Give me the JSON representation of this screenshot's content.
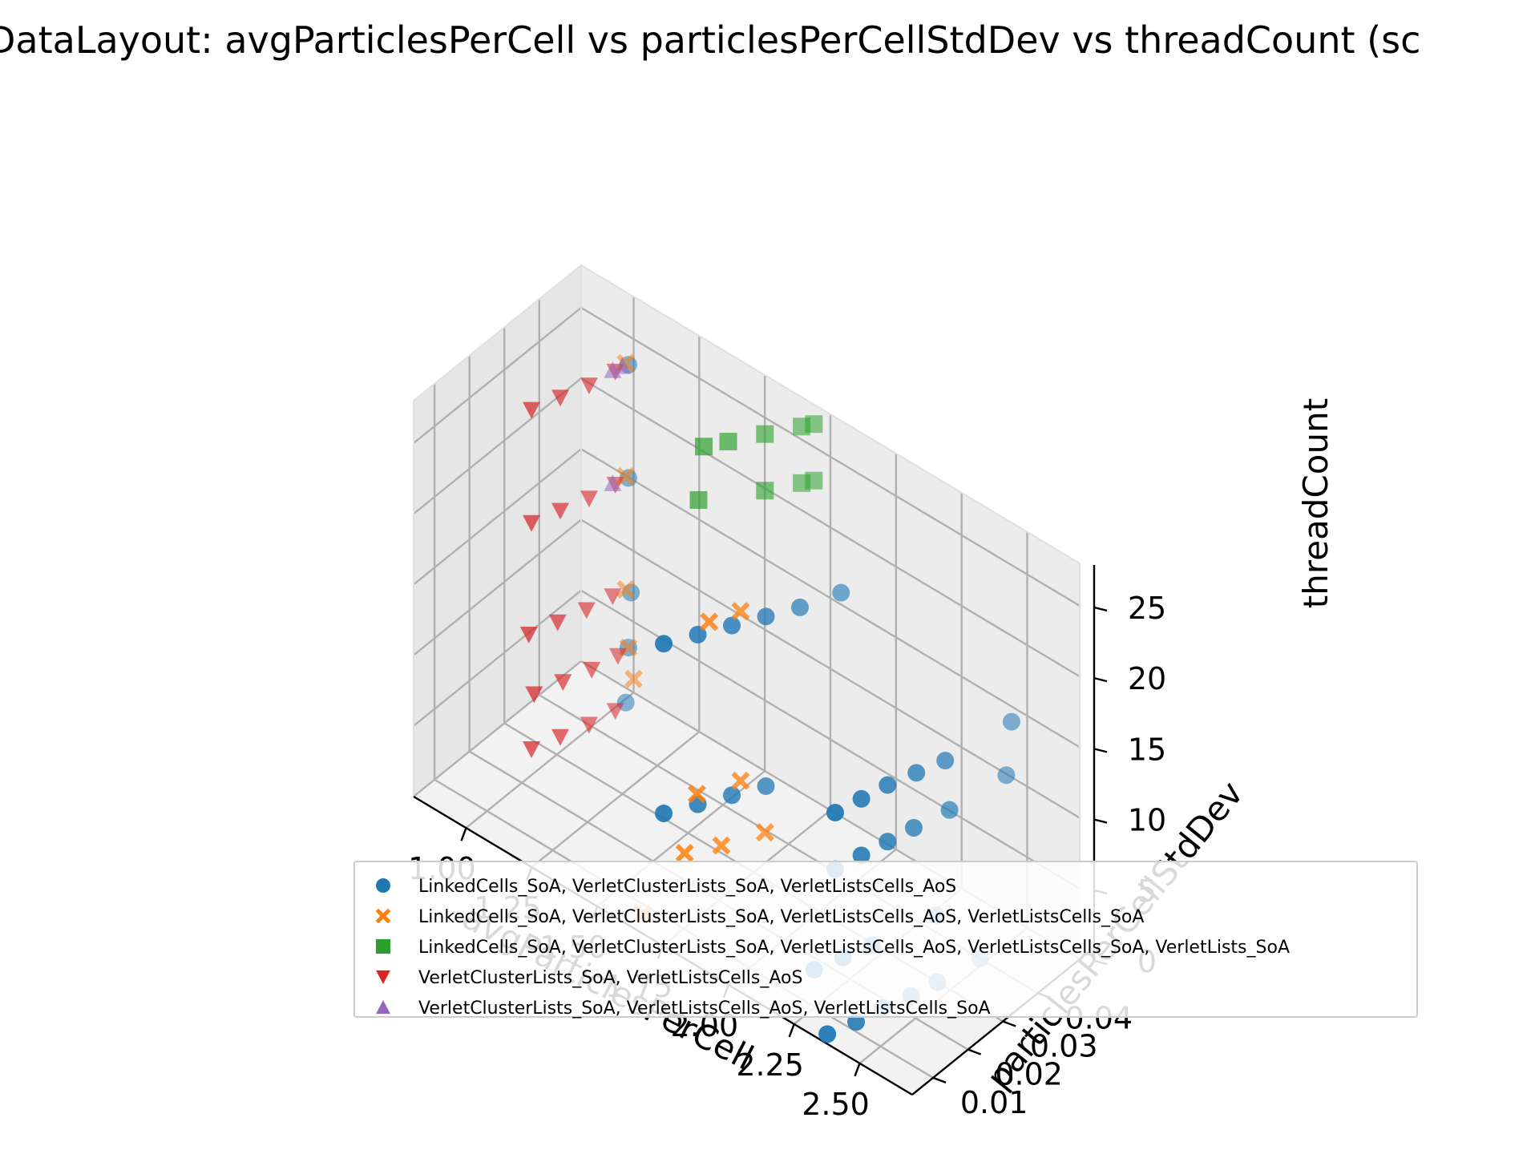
{
  "chart_data": {
    "type": "scatter",
    "title": "DataLayout: avgParticlesPerCell vs particlesPerCellStdDev vs threadCount (sc",
    "xlabel": "avgParticlesPerCell",
    "ylabel": "particlesPerCellStdDev",
    "zlabel": "threadCount",
    "x_ticks": [
      "1.00",
      "1.25",
      "1.50",
      "1.75",
      "2.00",
      "2.25",
      "2.50"
    ],
    "y_ticks": [
      "0.01",
      "0.02",
      "0.03",
      "0.04"
    ],
    "z_ticks": [
      "0",
      "5",
      "10",
      "15",
      "20",
      "25"
    ],
    "xlim": [
      0.8,
      2.7
    ],
    "ylim": [
      0.004,
      0.052
    ],
    "zlim": [
      0,
      28
    ],
    "grid": true,
    "legend_position": "bottom",
    "series": [
      {
        "name": "LinkedCells_SoA, VerletClusterLists_SoA, VerletListsCells_AoS",
        "color": "#1f77b4",
        "marker": "circle",
        "points": [
          [
            2.35,
            0.006,
            0
          ],
          [
            2.38,
            0.012,
            0
          ],
          [
            2.4,
            0.018,
            0
          ],
          [
            2.43,
            0.024,
            0
          ],
          [
            2.45,
            0.03,
            0
          ],
          [
            2.48,
            0.04,
            0
          ],
          [
            2.3,
            0.006,
            4
          ],
          [
            2.33,
            0.012,
            4
          ],
          [
            2.36,
            0.018,
            4
          ],
          [
            2.42,
            0.032,
            4
          ],
          [
            2.38,
            0.006,
            12
          ],
          [
            2.4,
            0.012,
            12
          ],
          [
            2.42,
            0.018,
            12
          ],
          [
            2.44,
            0.024,
            12
          ],
          [
            2.47,
            0.032,
            12
          ],
          [
            2.5,
            0.046,
            12
          ],
          [
            2.38,
            0.006,
            16
          ],
          [
            2.4,
            0.012,
            16
          ],
          [
            2.42,
            0.018,
            16
          ],
          [
            2.45,
            0.024,
            16
          ],
          [
            2.48,
            0.03,
            16
          ],
          [
            2.52,
            0.046,
            16
          ],
          [
            1.7,
            0.008,
            8
          ],
          [
            1.75,
            0.014,
            8
          ],
          [
            1.8,
            0.02,
            8
          ],
          [
            1.85,
            0.026,
            8
          ],
          [
            1.7,
            0.008,
            20
          ],
          [
            1.75,
            0.014,
            20
          ],
          [
            1.8,
            0.02,
            20
          ],
          [
            1.85,
            0.026,
            20
          ],
          [
            1.9,
            0.032,
            20
          ],
          [
            1.95,
            0.04,
            20
          ],
          [
            1.01,
            0.049,
            0
          ],
          [
            1.02,
            0.049,
            4
          ],
          [
            1.03,
            0.049,
            8
          ],
          [
            1.02,
            0.049,
            16
          ],
          [
            1.02,
            0.049,
            24
          ]
        ]
      },
      {
        "name": "LinkedCells_SoA, VerletClusterLists_SoA, VerletListsCells_AoS, VerletListsCells_SoA",
        "color": "#ff7f0e",
        "marker": "x",
        "points": [
          [
            1.62,
            0.008,
            0
          ],
          [
            1.7,
            0.014,
            4
          ],
          [
            1.76,
            0.02,
            4
          ],
          [
            1.82,
            0.028,
            4
          ],
          [
            1.72,
            0.016,
            8
          ],
          [
            1.78,
            0.024,
            8
          ],
          [
            1.74,
            0.018,
            20
          ],
          [
            1.78,
            0.024,
            20
          ],
          [
            1.04,
            0.049,
            2
          ],
          [
            1.02,
            0.049,
            4
          ],
          [
            1.01,
            0.049,
            8
          ],
          [
            1.01,
            0.049,
            16
          ],
          [
            1.01,
            0.049,
            24
          ]
        ]
      },
      {
        "name": "LinkedCells_SoA, VerletClusterLists_SoA, VerletListsCells_AoS, VerletListsCells_SoA, VerletLists_SoA",
        "color": "#2ca02c",
        "marker": "square",
        "points": [
          [
            1.56,
            0.03,
            28
          ],
          [
            1.6,
            0.034,
            28
          ],
          [
            1.66,
            0.04,
            28
          ],
          [
            1.72,
            0.046,
            28
          ],
          [
            1.74,
            0.048,
            28
          ],
          [
            1.54,
            0.03,
            24
          ],
          [
            1.66,
            0.04,
            24
          ],
          [
            1.72,
            0.046,
            24
          ],
          [
            1.74,
            0.048,
            24
          ]
        ]
      },
      {
        "name": "VerletClusterLists_SoA, VerletListsCells_AoS",
        "color": "#d62728",
        "marker": "triangle-down",
        "points": [
          [
            0.93,
            0.028,
            0
          ],
          [
            0.96,
            0.034,
            0
          ],
          [
            0.99,
            0.04,
            0
          ],
          [
            1.01,
            0.046,
            0
          ],
          [
            0.94,
            0.028,
            4
          ],
          [
            0.97,
            0.034,
            4
          ],
          [
            1.0,
            0.04,
            4
          ],
          [
            1.02,
            0.046,
            4
          ],
          [
            0.92,
            0.028,
            8
          ],
          [
            0.95,
            0.034,
            8
          ],
          [
            0.98,
            0.04,
            8
          ],
          [
            1.0,
            0.046,
            8
          ],
          [
            0.93,
            0.028,
            16
          ],
          [
            0.96,
            0.034,
            16
          ],
          [
            0.99,
            0.04,
            16
          ],
          [
            1.01,
            0.046,
            16
          ],
          [
            0.93,
            0.028,
            24
          ],
          [
            0.96,
            0.034,
            24
          ],
          [
            0.99,
            0.04,
            24
          ],
          [
            1.01,
            0.046,
            24
          ]
        ]
      },
      {
        "name": "VerletClusterLists_SoA, VerletListsCells_AoS, VerletListsCells_SoA",
        "color": "#9467bd",
        "marker": "triangle-up",
        "points": [
          [
            1.0,
            0.046,
            16
          ],
          [
            1.0,
            0.046,
            24
          ],
          [
            1.01,
            0.048,
            24
          ]
        ]
      }
    ]
  }
}
